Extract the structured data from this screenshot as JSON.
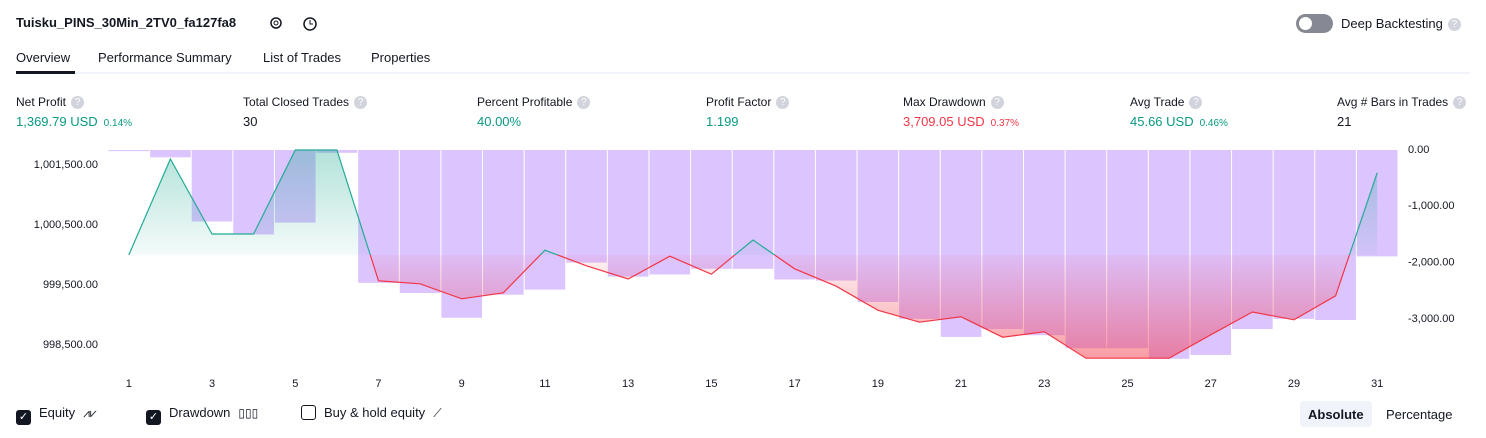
{
  "header": {
    "title": "Tuisku_PINS_30Min_2TV0_fa127fa8",
    "toggle": "Deep Backtesting"
  },
  "tabs": [
    "Overview",
    "Performance Summary",
    "List of Trades",
    "Properties"
  ],
  "metrics": [
    {
      "label": "Net Profit",
      "value": "1,369.79 USD",
      "percent": "0.14%"
    },
    {
      "label": "Total Closed Trades",
      "value": "30"
    },
    {
      "label": "Percent Profitable",
      "value": "40.00%"
    },
    {
      "label": "Profit Factor",
      "value": "1.199"
    },
    {
      "label": "Max Drawdown",
      "value": "3,709.05 USD",
      "percent": "0.37%"
    },
    {
      "label": "Avg Trade",
      "value": "45.66 USD",
      "percent": "0.46%"
    },
    {
      "label": "Avg # Bars in Trades",
      "value": "21"
    }
  ],
  "chart_data": {
    "type": "combo",
    "x": [
      1,
      2,
      3,
      4,
      5,
      6,
      7,
      8,
      9,
      10,
      11,
      12,
      13,
      14,
      15,
      16,
      17,
      18,
      19,
      20,
      21,
      22,
      23,
      24,
      25,
      26,
      27,
      28,
      29,
      30,
      31
    ],
    "xlim": [
      0.5,
      31.5
    ],
    "xticks": [
      1,
      3,
      5,
      7,
      9,
      11,
      13,
      15,
      17,
      19,
      21,
      23,
      25,
      27,
      29,
      31
    ],
    "ylim": [
      998250,
      1001750
    ],
    "yticks": [
      {
        "value": 1001500,
        "label": "1,001,500.00"
      },
      {
        "value": 1000500,
        "label": "1,000,500.00"
      },
      {
        "value": 999500,
        "label": "999,500.00"
      },
      {
        "value": 998500,
        "label": "998,500.00"
      }
    ],
    "y2lim": [
      -3730,
      0
    ],
    "y2ticks": [
      {
        "value": 0,
        "label": "0.00"
      },
      {
        "value": -1000,
        "label": "-1,000.00"
      },
      {
        "value": -2000,
        "label": "-2,000.00"
      },
      {
        "value": -3000,
        "label": "-3,000.00"
      }
    ],
    "series": [
      {
        "name": "Drawdown",
        "type": "bar",
        "axis": "y2",
        "color": "#c59cff",
        "values": [
          -20,
          -130,
          -1270,
          -1500,
          -1290,
          -50,
          -2360,
          -2540,
          -2980,
          -2570,
          -2480,
          -2000,
          -2250,
          -2210,
          -2110,
          -2110,
          -2300,
          -2320,
          -2700,
          -3000,
          -3320,
          -3180,
          -3290,
          -3520,
          -3520,
          -3709,
          -3640,
          -3180,
          -3000,
          -3020,
          -1890
        ]
      },
      {
        "name": "Equity",
        "type": "line",
        "axis": "y",
        "color": "#22ab94",
        "color_down": "#f23645",
        "values": [
          1000000,
          1001600,
          1000350,
          1000350,
          1001750,
          1001750,
          999570,
          999520,
          999270,
          999370,
          1000080,
          999820,
          999600,
          999980,
          999680,
          1000250,
          999770,
          999480,
          999080,
          998880,
          998970,
          998630,
          998720,
          998280,
          998280,
          998280,
          998670,
          999050,
          998920,
          999320,
          1001370
        ]
      }
    ],
    "legend": [
      "Equity",
      "Drawdown",
      "Buy & hold equity"
    ],
    "modes": [
      "Absolute",
      "Percentage"
    ]
  }
}
